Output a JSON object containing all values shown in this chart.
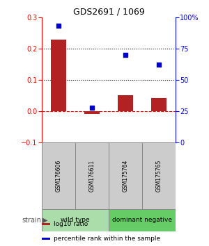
{
  "title": "GDS2691 / 1069",
  "samples": [
    "GSM176606",
    "GSM176611",
    "GSM175764",
    "GSM175765"
  ],
  "log10_ratio": [
    0.228,
    -0.008,
    0.052,
    0.043
  ],
  "percentile_rank": [
    0.93,
    0.28,
    0.7,
    0.62
  ],
  "bar_color": "#b22222",
  "dot_color": "#0000cc",
  "groups": [
    {
      "label": "wild type",
      "samples": [
        0,
        1
      ],
      "color": "#aaddaa"
    },
    {
      "label": "dominant negative",
      "samples": [
        2,
        3
      ],
      "color": "#66cc66"
    }
  ],
  "ylim_left": [
    -0.1,
    0.3
  ],
  "ylim_right": [
    0.0,
    1.0
  ],
  "yticks_left": [
    -0.1,
    0.0,
    0.1,
    0.2,
    0.3
  ],
  "yticks_right": [
    0.0,
    0.25,
    0.5,
    0.75,
    1.0
  ],
  "ytick_labels_right": [
    "0",
    "25",
    "50",
    "75",
    "100%"
  ],
  "hlines": [
    0.1,
    0.2
  ],
  "strain_label": "strain",
  "legend_items": [
    {
      "color": "#b22222",
      "label": "log10 ratio"
    },
    {
      "color": "#0000cc",
      "label": "percentile rank within the sample"
    }
  ],
  "background_color": "#ffffff",
  "sample_box_color": "#cccccc",
  "sample_box_edge": "#888888"
}
